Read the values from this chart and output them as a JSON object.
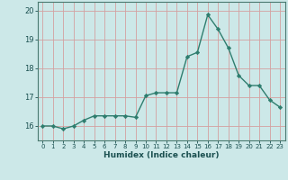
{
  "x": [
    0,
    1,
    2,
    3,
    4,
    5,
    6,
    7,
    8,
    9,
    10,
    11,
    12,
    13,
    14,
    15,
    16,
    17,
    18,
    19,
    20,
    21,
    22,
    23
  ],
  "y": [
    16.0,
    16.0,
    15.9,
    16.0,
    16.2,
    16.35,
    16.35,
    16.35,
    16.35,
    16.3,
    17.05,
    17.15,
    17.15,
    17.15,
    18.4,
    18.55,
    19.85,
    19.35,
    18.7,
    17.75,
    17.4,
    17.4,
    16.9,
    16.65
  ],
  "xlabel": "Humidex (Indice chaleur)",
  "xlim": [
    -0.5,
    23.5
  ],
  "ylim": [
    15.5,
    20.3
  ],
  "yticks": [
    16,
    17,
    18,
    19,
    20
  ],
  "xtick_labels": [
    "0",
    "1",
    "2",
    "3",
    "4",
    "5",
    "6",
    "7",
    "8",
    "9",
    "10",
    "11",
    "12",
    "13",
    "14",
    "15",
    "16",
    "17",
    "18",
    "19",
    "20",
    "21",
    "22",
    "23"
  ],
  "line_color": "#2e7d6e",
  "marker_color": "#2e7d6e",
  "bg_color": "#cce8e8",
  "grid_color": "#d4a0a0",
  "axis_color": "#4a7a70",
  "tick_label_color": "#1a5050",
  "xlabel_color": "#1a5050"
}
